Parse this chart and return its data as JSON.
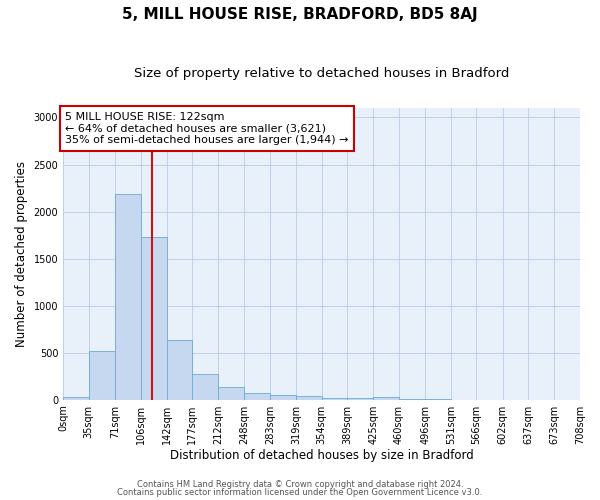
{
  "title": "5, MILL HOUSE RISE, BRADFORD, BD5 8AJ",
  "subtitle": "Size of property relative to detached houses in Bradford",
  "xlabel": "Distribution of detached houses by size in Bradford",
  "ylabel": "Number of detached properties",
  "bar_color": "#c5d8f0",
  "bar_edge_color": "#6aaad4",
  "bg_color": "#e8f0fa",
  "grid_color": "#b8cde8",
  "vline_x": 122,
  "vline_color": "#cc1111",
  "bin_edges": [
    0,
    35,
    71,
    106,
    142,
    177,
    212,
    248,
    283,
    319,
    354,
    389,
    425,
    460,
    496,
    531,
    566,
    602,
    637,
    673,
    708
  ],
  "bar_heights": [
    28,
    520,
    2190,
    1730,
    635,
    270,
    140,
    75,
    55,
    38,
    22,
    18,
    30,
    5,
    5,
    2,
    2,
    2,
    2,
    2
  ],
  "ylim": [
    0,
    3100
  ],
  "yticks": [
    0,
    500,
    1000,
    1500,
    2000,
    2500,
    3000
  ],
  "annotation_text": "5 MILL HOUSE RISE: 122sqm\n← 64% of detached houses are smaller (3,621)\n35% of semi-detached houses are larger (1,944) →",
  "annotation_box_color": "#ffffff",
  "annotation_box_edge": "#cc0000",
  "footnote1": "Contains HM Land Registry data © Crown copyright and database right 2024.",
  "footnote2": "Contains public sector information licensed under the Open Government Licence v3.0.",
  "title_fontsize": 11,
  "subtitle_fontsize": 9.5,
  "tick_label_fontsize": 7,
  "axis_label_fontsize": 8.5,
  "annotation_fontsize": 8,
  "footnote_fontsize": 6
}
